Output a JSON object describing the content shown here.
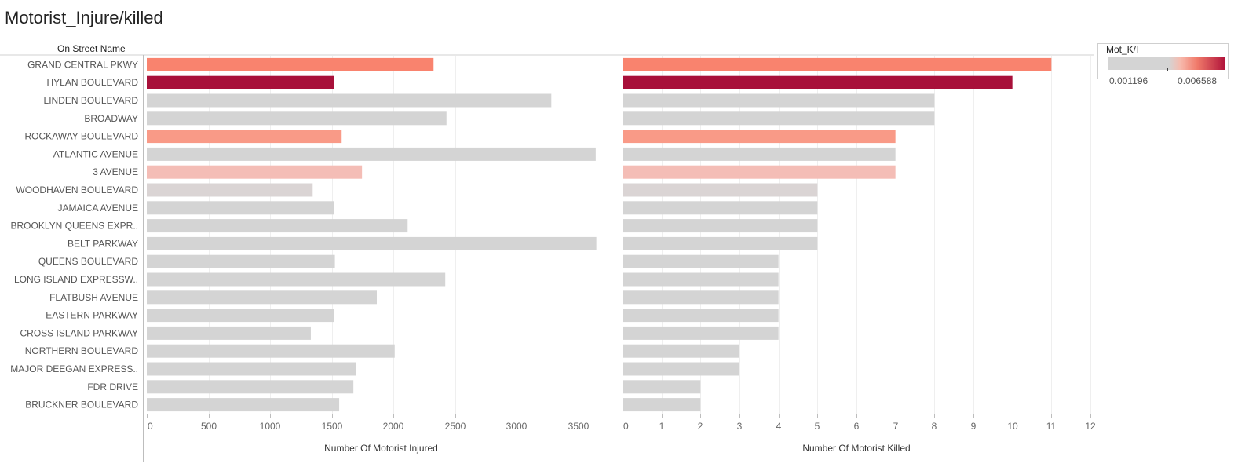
{
  "title": "Motorist_Injure/killed",
  "row_header": "On Street Name",
  "legend": {
    "title": "Mot_K/I",
    "min_label": "0.001196",
    "max_label": "0.006588",
    "colors": [
      "#d4d4d4",
      "#f7b9ac",
      "#f07a6a",
      "#b0123a"
    ]
  },
  "chart_data": [
    {
      "type": "bar",
      "orientation": "horizontal",
      "xlabel": "Number Of Motorist Injured",
      "xlim": [
        0,
        3800
      ],
      "ticks": [
        0,
        500,
        1000,
        1500,
        2000,
        2500,
        3000,
        3500
      ],
      "categories": [
        "GRAND CENTRAL PKWY",
        "HYLAN BOULEVARD",
        "LINDEN BOULEVARD",
        "BROADWAY",
        "ROCKAWAY BOULEVARD",
        "ATLANTIC AVENUE",
        "3 AVENUE",
        "WOODHAVEN BOULEVARD",
        "JAMAICA AVENUE",
        "BROOKLYN QUEENS EXPR..",
        "BELT PARKWAY",
        "QUEENS BOULEVARD",
        "LONG ISLAND EXPRESSW..",
        "FLATBUSH AVENUE",
        "EASTERN PARKWAY",
        "CROSS ISLAND PARKWAY",
        "NORTHERN BOULEVARD",
        "MAJOR DEEGAN EXPRESS..",
        "FDR DRIVE",
        "BRUCKNER BOULEVARD"
      ],
      "values": [
        2325,
        1520,
        3280,
        2430,
        1580,
        3640,
        1745,
        1345,
        1520,
        2115,
        3645,
        1525,
        2420,
        1865,
        1515,
        1330,
        2010,
        1695,
        1675,
        1560
      ]
    },
    {
      "type": "bar",
      "orientation": "horizontal",
      "xlabel": "Number Of Motorist Killed",
      "xlim": [
        0,
        12
      ],
      "ticks": [
        0,
        1,
        2,
        3,
        4,
        5,
        6,
        7,
        8,
        9,
        10,
        11,
        12
      ],
      "categories": [
        "GRAND CENTRAL PKWY",
        "HYLAN BOULEVARD",
        "LINDEN BOULEVARD",
        "BROADWAY",
        "ROCKAWAY BOULEVARD",
        "ATLANTIC AVENUE",
        "3 AVENUE",
        "WOODHAVEN BOULEVARD",
        "JAMAICA AVENUE",
        "BROOKLYN QUEENS EXPR..",
        "BELT PARKWAY",
        "QUEENS BOULEVARD",
        "LONG ISLAND EXPRESSW..",
        "FLATBUSH AVENUE",
        "EASTERN PARKWAY",
        "CROSS ISLAND PARKWAY",
        "NORTHERN BOULEVARD",
        "MAJOR DEEGAN EXPRESS..",
        "FDR DRIVE",
        "BRUCKNER BOULEVARD"
      ],
      "values": [
        11,
        10,
        8,
        8,
        7,
        7,
        7,
        5,
        5,
        5,
        5,
        4,
        4,
        4,
        4,
        4,
        3,
        3,
        2,
        2
      ]
    }
  ],
  "bar_colors": [
    "#f9836e",
    "#a8103a",
    "#d4d4d4",
    "#d4d4d4",
    "#f99a87",
    "#d4d4d4",
    "#f4bdb6",
    "#dad4d4",
    "#d4d4d4",
    "#d4d4d4",
    "#d4d4d4",
    "#d4d4d4",
    "#d4d4d4",
    "#d4d4d4",
    "#d4d4d4",
    "#d4d4d4",
    "#d4d4d4",
    "#d4d4d4",
    "#d4d4d4",
    "#d4d4d4"
  ]
}
